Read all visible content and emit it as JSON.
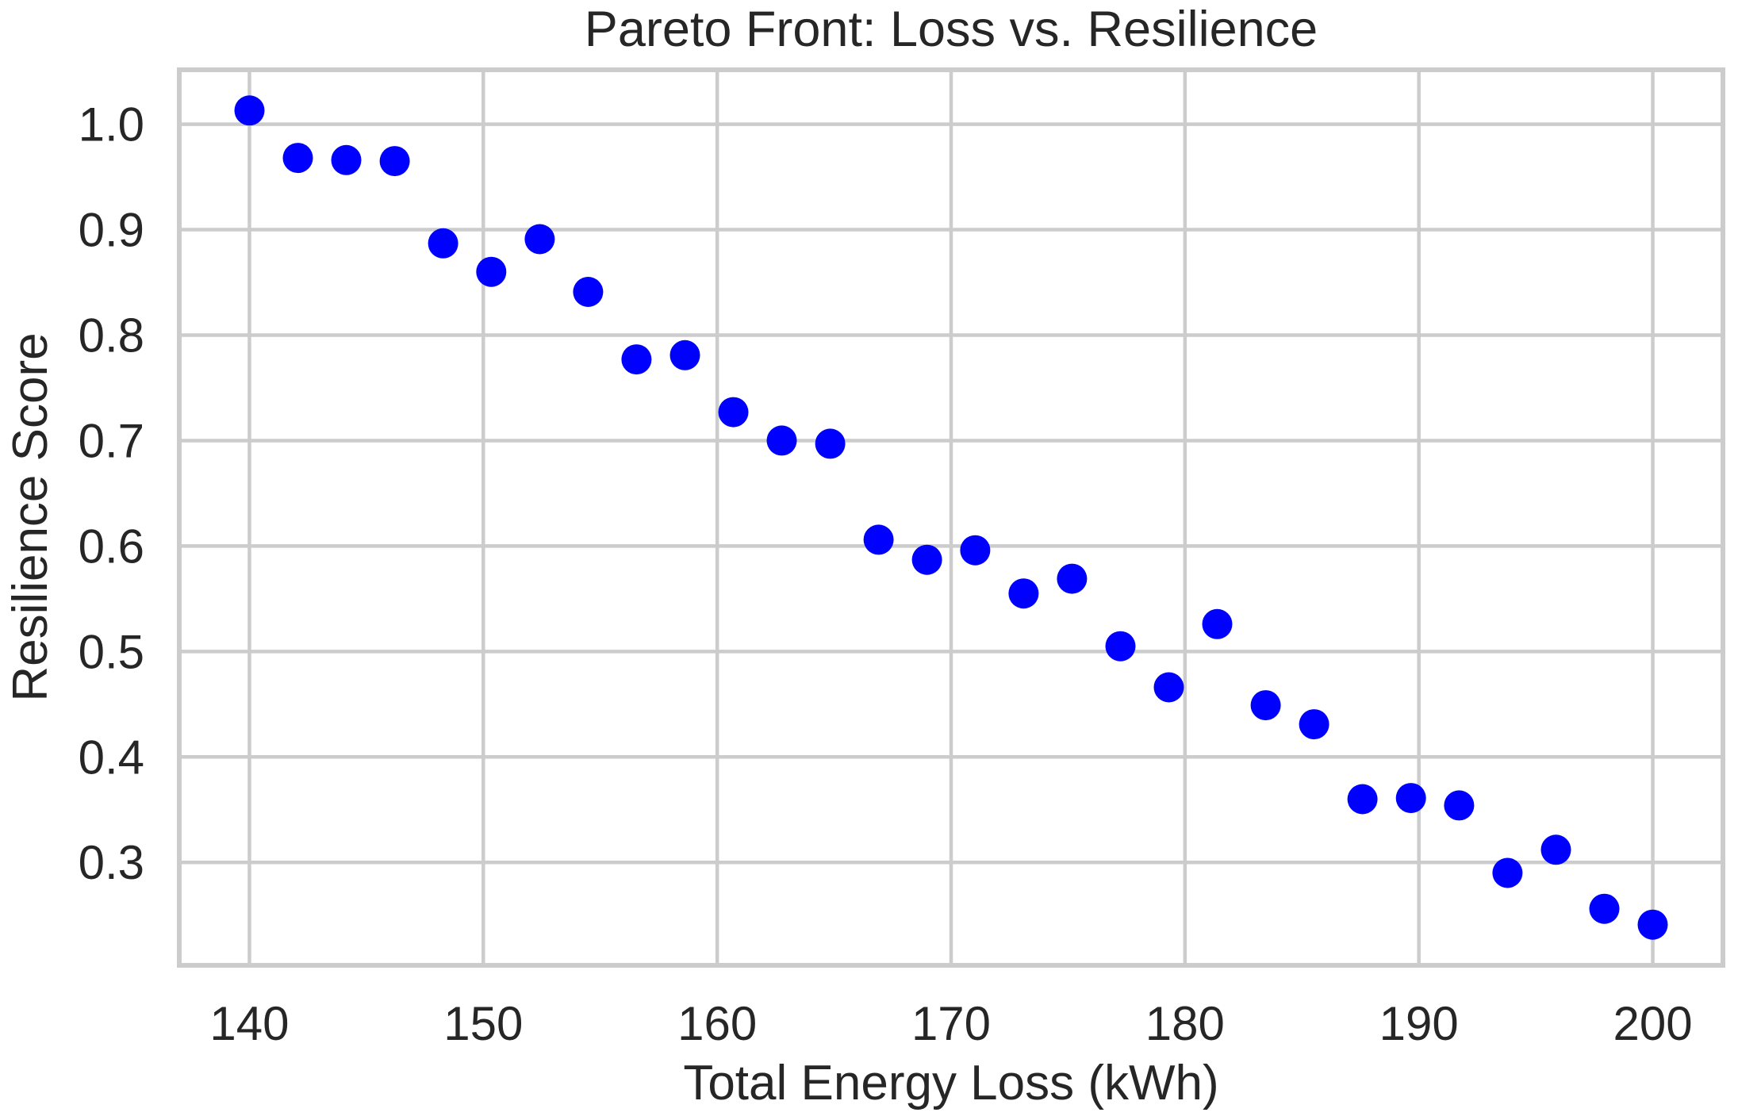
{
  "figure": {
    "title": "Pareto Front: Loss vs. Resilience",
    "xlabel": "Total Energy Loss (kWh)",
    "ylabel": "Resilience Score"
  },
  "chart_data": {
    "type": "scatter",
    "title": "Pareto Front: Loss vs. Resilience",
    "xlabel": "Total Energy Loss (kWh)",
    "ylabel": "Resilience Score",
    "x": [
      140.0,
      142.07,
      144.14,
      146.21,
      148.28,
      150.34,
      152.41,
      154.48,
      156.55,
      158.62,
      160.69,
      162.76,
      164.83,
      166.9,
      168.97,
      171.03,
      173.1,
      175.17,
      177.24,
      179.31,
      181.38,
      183.45,
      185.52,
      187.59,
      189.66,
      191.72,
      193.79,
      195.86,
      197.93,
      200.0
    ],
    "y": [
      1.013,
      0.968,
      0.966,
      0.965,
      0.887,
      0.86,
      0.891,
      0.841,
      0.777,
      0.781,
      0.727,
      0.7,
      0.697,
      0.606,
      0.587,
      0.596,
      0.555,
      0.569,
      0.505,
      0.466,
      0.526,
      0.449,
      0.431,
      0.36,
      0.361,
      0.354,
      0.29,
      0.312,
      0.256,
      0.241
    ],
    "xlim": [
      137,
      203
    ],
    "ylim": [
      0.2024,
      1.0516
    ],
    "xticks": [
      140,
      150,
      160,
      170,
      180,
      190,
      200
    ],
    "yticks": [
      0.3,
      0.4,
      0.5,
      0.6,
      0.7,
      0.8,
      0.9,
      1.0
    ],
    "grid": true,
    "legend": "none",
    "marker_color": "#0000ff",
    "marker_radius_px": 19,
    "grid_color": "#cccccc",
    "spine_color": "#cccccc",
    "text_color": "#262626",
    "background_color": "#ffffff"
  }
}
